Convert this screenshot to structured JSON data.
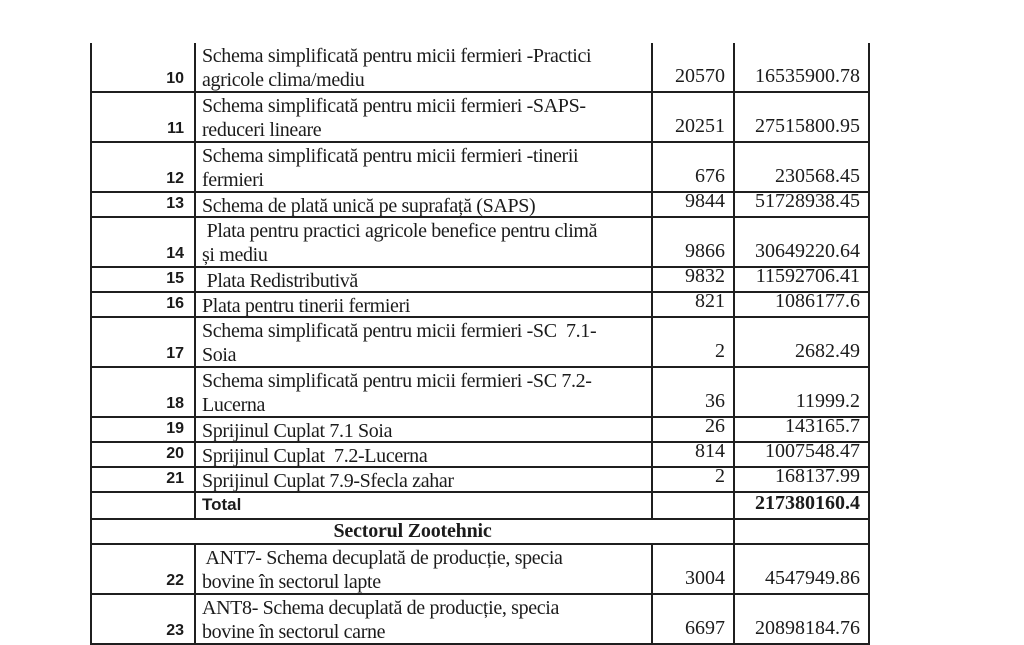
{
  "page": {
    "background_color": "#ffffff",
    "text_color": "#1b1b1b",
    "border_color": "#1f1f1f"
  },
  "table": {
    "rows": [
      {
        "no": "10",
        "desc": "Schema simplificată pentru micii fermieri -Practici\nagricole clima/mediu",
        "count": "20570",
        "amount": "16535900.78"
      },
      {
        "no": "11",
        "desc": "Schema simplificată pentru micii fermieri -SAPS-\nreduceri lineare",
        "count": "20251",
        "amount": "27515800.95"
      },
      {
        "no": "12",
        "desc": "Schema simplificată pentru micii fermieri -tinerii\nfermieri",
        "count": "676",
        "amount": "230568.45"
      },
      {
        "no": "13",
        "desc": "Schema de plată unică pe suprafață (SAPS)",
        "count": "9844",
        "amount": "51728938.45"
      },
      {
        "no": "14",
        "desc": " Plata pentru practici agricole benefice pentru climă\nși mediu",
        "count": "9866",
        "amount": "30649220.64"
      },
      {
        "no": "15",
        "desc": " Plata Redistributivă",
        "count": "9832",
        "amount": "11592706.41"
      },
      {
        "no": "16",
        "desc": "Plata pentru tinerii fermieri",
        "count": "821",
        "amount": "1086177.6"
      },
      {
        "no": "17",
        "desc": "Schema simplificată pentru micii fermieri -SC  7.1-\nSoia",
        "count": "2",
        "amount": "2682.49"
      },
      {
        "no": "18",
        "desc": "Schema simplificată pentru micii fermieri -SC 7.2-\nLucerna",
        "count": "36",
        "amount": "11999.2"
      },
      {
        "no": "19",
        "desc": "Sprijinul Cuplat 7.1 Soia",
        "count": "26",
        "amount": "143165.7"
      },
      {
        "no": "20",
        "desc": "Sprijinul Cuplat  7.2-Lucerna",
        "count": "814",
        "amount": "1007548.47"
      },
      {
        "no": "21",
        "desc": "Sprijinul Cuplat 7.9-Sfecla zahar",
        "count": "2",
        "amount": "168137.99"
      }
    ],
    "total": {
      "label": "Total",
      "amount": "217380160.4"
    },
    "section_header": "Sectorul Zootehnic",
    "rows_zootehnic": [
      {
        "no": "22",
        "desc": " ANT7- Schema decuplată de producție, specia\nbovine în sectorul lapte",
        "count": "3004",
        "amount": "4547949.86"
      },
      {
        "no": "23",
        "desc": "ANT8- Schema decuplată de producție, specia\nbovine în sectorul carne",
        "count": "6697",
        "amount": "20898184.76"
      }
    ]
  }
}
